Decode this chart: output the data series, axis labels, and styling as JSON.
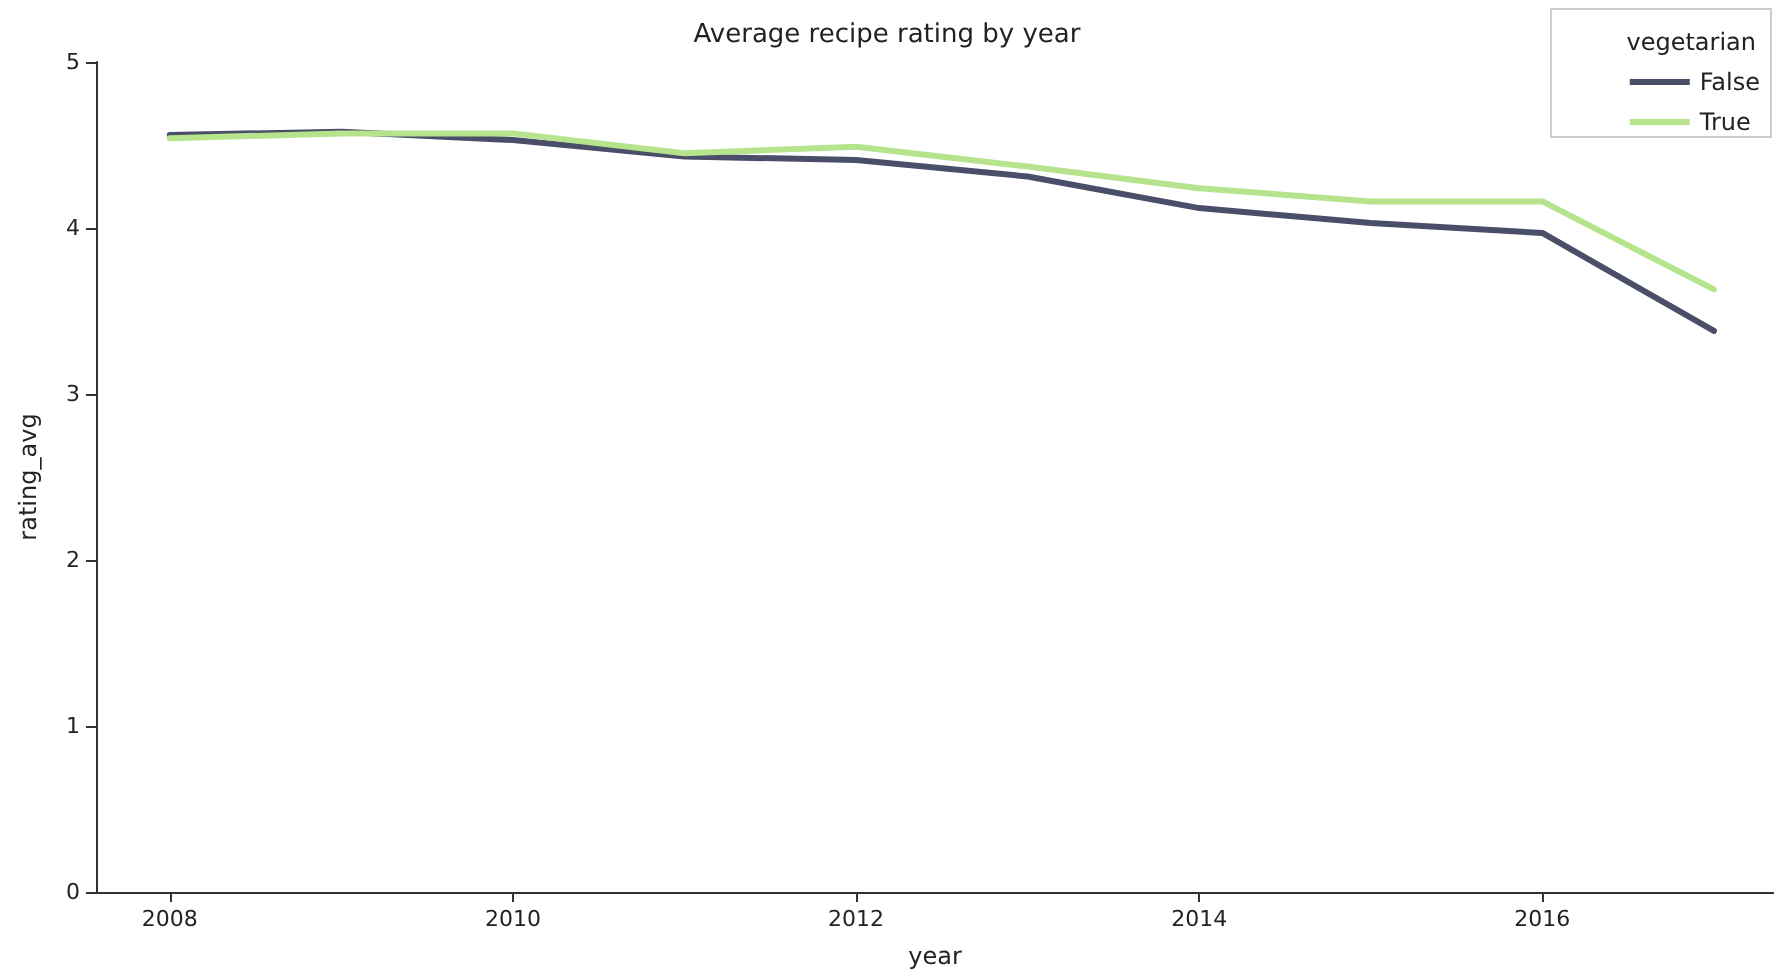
{
  "chart_data": {
    "type": "line",
    "title": "Average recipe rating by year",
    "xlabel": "year",
    "ylabel": "rating_avg",
    "legend_title": "vegetarian",
    "x": [
      2008,
      2009,
      2010,
      2011,
      2012,
      2013,
      2014,
      2015,
      2016,
      2017
    ],
    "series": [
      {
        "name": "False",
        "color": "#4a4e69",
        "values": [
          4.56,
          4.58,
          4.53,
          4.43,
          4.41,
          4.31,
          4.12,
          4.03,
          3.97,
          3.38
        ]
      },
      {
        "name": "True",
        "color": "#b5e48c",
        "values": [
          4.54,
          4.57,
          4.57,
          4.45,
          4.49,
          4.37,
          4.24,
          4.16,
          4.16,
          3.63
        ]
      }
    ],
    "xlim": [
      2007.57,
      2017.35
    ],
    "xticks": [
      2008,
      2010,
      2012,
      2014,
      2016
    ],
    "ylim": [
      0,
      5
    ],
    "yticks": [
      0,
      1,
      2,
      3,
      4,
      5
    ],
    "grid": false,
    "legend": "top right",
    "marker": "none",
    "line_style": "solid"
  }
}
